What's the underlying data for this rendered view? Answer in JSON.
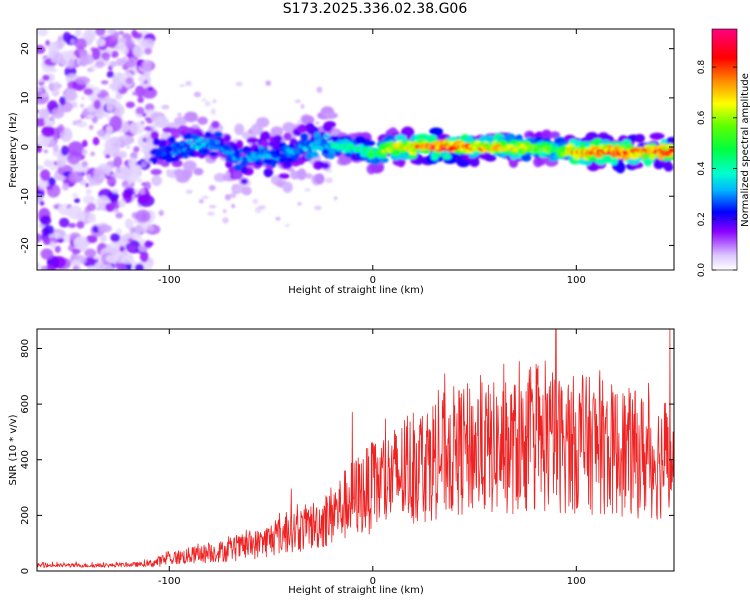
{
  "title": "S173.2025.336.02.38.G06",
  "chart_data": [
    {
      "type": "heatmap",
      "xlabel": "Height of straight line (km)",
      "ylabel": "Frequency (Hz)",
      "xlim": [
        -165,
        148
      ],
      "ylim": [
        -25,
        24
      ],
      "xticks": [
        -100,
        0,
        100
      ],
      "yticks": [
        -20,
        -10,
        0,
        10,
        20
      ],
      "colorbar": {
        "label": "Normalized spectral amplitude",
        "range": [
          0,
          0.95
        ],
        "ticks": [
          "0.0",
          "0.2",
          "0.4",
          "0.6",
          "0.8"
        ],
        "tick_values": [
          0,
          0.2,
          0.4,
          0.6,
          0.8
        ]
      },
      "ridge": {
        "x": [
          -108,
          -95,
          -85,
          -75,
          -65,
          -55,
          -45,
          -35,
          -25,
          -15,
          -5,
          0,
          10,
          30,
          60,
          90,
          100,
          147
        ],
        "freq": [
          -1,
          -0.5,
          1,
          0.5,
          -3,
          -1,
          -2,
          0,
          0.5,
          0,
          -0.5,
          -1.5,
          0,
          0,
          0,
          -0.5,
          -1,
          -1
        ],
        "amplitude": [
          0.25,
          0.3,
          0.35,
          0.3,
          0.3,
          0.35,
          0.3,
          0.35,
          0.35,
          0.45,
          0.5,
          0.5,
          0.7,
          0.9,
          0.75,
          0.55,
          0.85,
          0.85
        ]
      },
      "noise_region": {
        "x": [
          -165,
          -108
        ],
        "freq": [
          -25,
          24
        ],
        "amplitude": 0.05
      }
    },
    {
      "type": "line",
      "xlabel": "Height of straight line (km)",
      "ylabel": "SNR (10 * v/v)",
      "xlim": [
        -165,
        148
      ],
      "ylim": [
        0,
        870
      ],
      "xticks": [
        -100,
        0,
        100
      ],
      "yticks": [
        0,
        200,
        400,
        600,
        800
      ],
      "series": [
        {
          "color": "#ee2222",
          "envelope": {
            "x": [
              -165,
              -130,
              -110,
              -100,
              -85,
              -70,
              -55,
              -45,
              -35,
              -25,
              -15,
              -8,
              0,
              10,
              20,
              30,
              40,
              50,
              60,
              70,
              80,
              90,
              100,
              110,
              120,
              130,
              140,
              148
            ],
            "y": [
              20,
              20,
              25,
              45,
              60,
              75,
              100,
              130,
              150,
              175,
              230,
              270,
              300,
              335,
              370,
              405,
              430,
              440,
              440,
              445,
              450,
              455,
              455,
              450,
              430,
              420,
              400,
              420
            ]
          },
          "spikes": [
            {
              "x": -40,
              "y": 295
            },
            {
              "x": -10,
              "y": 570
            },
            {
              "x": 90,
              "y": 870
            },
            {
              "x": 146,
              "y": 870
            }
          ]
        }
      ]
    }
  ]
}
